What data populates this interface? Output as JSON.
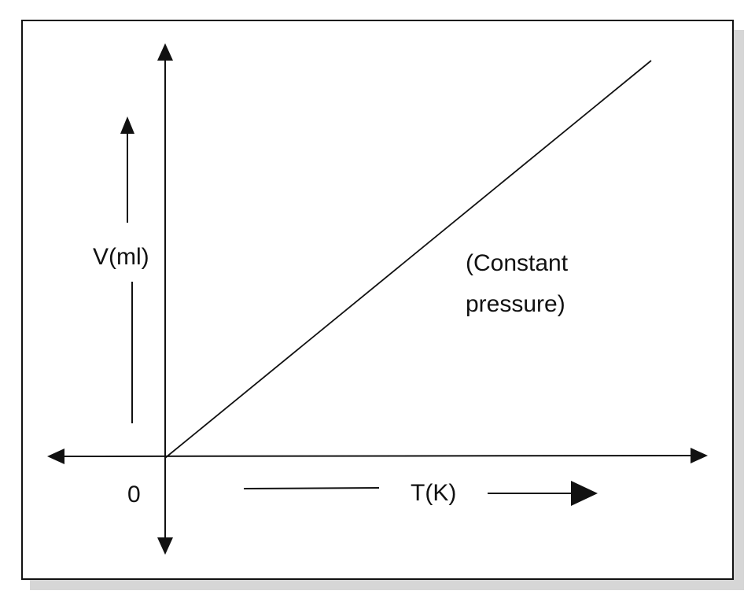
{
  "diagram": {
    "y_axis_label": "V(ml)",
    "x_axis_label": "T(K)",
    "origin_label": "0",
    "note_line1": "(Constant",
    "note_line2": "pressure)"
  },
  "colors": {
    "line": "#111111",
    "frame_shadow": "#d6d6d6",
    "background": "#ffffff"
  }
}
